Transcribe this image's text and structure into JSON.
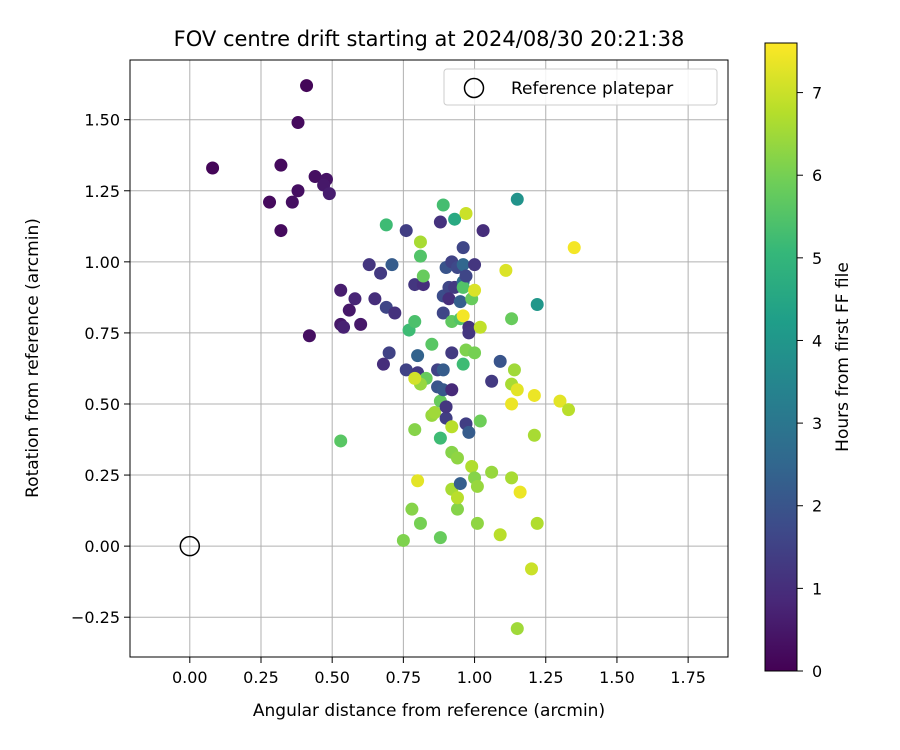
{
  "chart_data": {
    "type": "scatter",
    "title": "FOV centre drift starting at 2024/08/30 20:21:38",
    "xlabel": "Angular distance from reference (arcmin)",
    "ylabel": "Rotation from reference (arcmin)",
    "xlim": [
      -0.21,
      1.89
    ],
    "ylim": [
      -0.39,
      1.71
    ],
    "xticks": [
      "0.00",
      "0.25",
      "0.50",
      "0.75",
      "1.00",
      "1.25",
      "1.50",
      "1.75"
    ],
    "yticks": [
      "−0.25",
      "0.00",
      "0.25",
      "0.50",
      "0.75",
      "1.00",
      "1.25",
      "1.50"
    ],
    "grid": true,
    "legend": {
      "position": "top-right",
      "entries": [
        "Reference platepar"
      ]
    },
    "reference_point": {
      "x": 0.0,
      "y": 0.0
    },
    "colorbar": {
      "label": "Hours from first FF file",
      "min": 0,
      "max": 7.6,
      "ticks": [
        "0",
        "1",
        "2",
        "3",
        "4",
        "5",
        "6",
        "7"
      ],
      "colormap": "viridis"
    },
    "colormap_stops": [
      "#440154",
      "#482878",
      "#3e4989",
      "#31688e",
      "#26828e",
      "#1f9e89",
      "#35b779",
      "#6ece58",
      "#b5de2b",
      "#fde725"
    ],
    "points": [
      [
        0.41,
        1.62,
        0.1
      ],
      [
        0.38,
        1.49,
        0.2
      ],
      [
        0.08,
        1.33,
        0.1
      ],
      [
        0.32,
        1.34,
        0.2
      ],
      [
        0.44,
        1.3,
        0.3
      ],
      [
        0.48,
        1.29,
        0.4
      ],
      [
        0.38,
        1.25,
        0.3
      ],
      [
        0.47,
        1.27,
        0.5
      ],
      [
        0.49,
        1.24,
        0.6
      ],
      [
        0.28,
        1.21,
        0.2
      ],
      [
        0.36,
        1.21,
        0.3
      ],
      [
        0.32,
        1.11,
        0.2
      ],
      [
        0.42,
        0.74,
        0.3
      ],
      [
        0.53,
        0.9,
        0.6
      ],
      [
        0.53,
        0.78,
        0.5
      ],
      [
        0.54,
        0.77,
        0.7
      ],
      [
        0.56,
        0.83,
        0.5
      ],
      [
        0.58,
        0.87,
        0.8
      ],
      [
        0.6,
        0.78,
        0.5
      ],
      [
        0.63,
        0.99,
        1.2
      ],
      [
        0.65,
        0.87,
        1.0
      ],
      [
        0.67,
        0.96,
        1.3
      ],
      [
        0.68,
        0.64,
        1.0
      ],
      [
        0.69,
        0.84,
        1.6
      ],
      [
        0.7,
        0.68,
        1.5
      ],
      [
        0.69,
        1.13,
        5.2
      ],
      [
        0.71,
        0.99,
        2.2
      ],
      [
        0.72,
        0.82,
        1.1
      ],
      [
        0.76,
        1.11,
        1.4
      ],
      [
        0.76,
        0.62,
        1.5
      ],
      [
        0.77,
        0.76,
        5.2
      ],
      [
        0.79,
        0.79,
        5.4
      ],
      [
        0.79,
        0.92,
        1.2
      ],
      [
        0.8,
        0.61,
        1.3
      ],
      [
        0.8,
        0.67,
        2.4
      ],
      [
        0.82,
        0.92,
        1.0
      ],
      [
        0.81,
        1.02,
        5.5
      ],
      [
        0.81,
        1.07,
        6.6
      ],
      [
        0.82,
        0.95,
        5.8
      ],
      [
        0.83,
        0.59,
        5.8
      ],
      [
        0.81,
        0.57,
        6.4
      ],
      [
        0.79,
        0.59,
        7.1
      ],
      [
        0.79,
        0.41,
        6.2
      ],
      [
        0.8,
        0.23,
        7.3
      ],
      [
        0.78,
        0.13,
        6.2
      ],
      [
        0.81,
        0.08,
        6.0
      ],
      [
        0.75,
        0.02,
        6.1
      ],
      [
        0.85,
        0.71,
        5.6
      ],
      [
        0.85,
        0.46,
        6.4
      ],
      [
        0.86,
        0.47,
        6.5
      ],
      [
        0.87,
        0.62,
        1.5
      ],
      [
        0.87,
        0.56,
        2.0
      ],
      [
        0.88,
        0.51,
        5.8
      ],
      [
        0.88,
        1.14,
        1.1
      ],
      [
        0.89,
        0.55,
        2.1
      ],
      [
        0.89,
        1.2,
        5.3
      ],
      [
        0.89,
        0.88,
        1.8
      ],
      [
        0.89,
        0.82,
        1.6
      ],
      [
        0.89,
        0.62,
        2.2
      ],
      [
        0.88,
        0.38,
        5.2
      ],
      [
        0.88,
        0.03,
        5.8
      ],
      [
        0.9,
        0.45,
        1.4
      ],
      [
        0.9,
        0.49,
        1.2
      ],
      [
        0.9,
        0.98,
        2.0
      ],
      [
        0.91,
        0.91,
        1.6
      ],
      [
        0.91,
        0.87,
        1.0
      ],
      [
        0.92,
        1.0,
        1.5
      ],
      [
        0.92,
        0.79,
        5.7
      ],
      [
        0.92,
        0.68,
        1.3
      ],
      [
        0.92,
        0.55,
        0.9
      ],
      [
        0.92,
        0.42,
        6.8
      ],
      [
        0.92,
        0.33,
        6.2
      ],
      [
        0.92,
        0.2,
        6.6
      ],
      [
        0.93,
        1.15,
        4.6
      ],
      [
        0.93,
        0.91,
        1.3
      ],
      [
        0.94,
        0.13,
        6.2
      ],
      [
        0.94,
        0.31,
        6.3
      ],
      [
        0.94,
        0.17,
        6.8
      ],
      [
        0.94,
        0.98,
        1.7
      ],
      [
        0.95,
        0.86,
        2.3
      ],
      [
        0.95,
        0.8,
        5.5
      ],
      [
        0.95,
        0.22,
        2.3
      ],
      [
        0.96,
        0.99,
        2.5
      ],
      [
        0.96,
        0.93,
        2.7
      ],
      [
        0.96,
        1.05,
        1.6
      ],
      [
        0.96,
        0.91,
        5.5
      ],
      [
        0.96,
        0.81,
        7.5
      ],
      [
        0.96,
        0.64,
        5.2
      ],
      [
        0.97,
        1.17,
        7.0
      ],
      [
        0.97,
        0.95,
        1.6
      ],
      [
        0.97,
        0.69,
        6.1
      ],
      [
        0.97,
        0.43,
        1.4
      ],
      [
        0.98,
        0.77,
        1.1
      ],
      [
        0.98,
        0.75,
        1.2
      ],
      [
        0.98,
        0.4,
        2.2
      ],
      [
        0.99,
        0.87,
        5.8
      ],
      [
        0.99,
        0.28,
        6.7
      ],
      [
        1.0,
        0.9,
        7.2
      ],
      [
        1.0,
        0.99,
        1.2
      ],
      [
        1.0,
        0.68,
        6.0
      ],
      [
        1.0,
        0.24,
        6.2
      ],
      [
        1.01,
        0.08,
        6.3
      ],
      [
        1.01,
        0.21,
        6.4
      ],
      [
        1.02,
        0.77,
        6.9
      ],
      [
        1.02,
        0.44,
        5.9
      ],
      [
        1.03,
        1.11,
        1.0
      ],
      [
        1.06,
        0.58,
        1.3
      ],
      [
        1.06,
        0.26,
        6.4
      ],
      [
        1.09,
        0.65,
        2.0
      ],
      [
        1.09,
        0.04,
        6.8
      ],
      [
        1.11,
        0.97,
        7.2
      ],
      [
        1.13,
        0.8,
        5.8
      ],
      [
        1.13,
        0.57,
        6.6
      ],
      [
        1.13,
        0.5,
        7.4
      ],
      [
        1.13,
        0.24,
        6.6
      ],
      [
        1.14,
        0.62,
        6.5
      ],
      [
        1.15,
        1.22,
        3.9
      ],
      [
        1.15,
        0.55,
        7.3
      ],
      [
        1.15,
        -0.29,
        6.5
      ],
      [
        1.16,
        0.19,
        7.4
      ],
      [
        1.2,
        -0.08,
        7.0
      ],
      [
        1.21,
        0.39,
        6.6
      ],
      [
        1.21,
        0.53,
        7.4
      ],
      [
        1.22,
        0.85,
        4.0
      ],
      [
        1.22,
        0.08,
        6.7
      ],
      [
        1.3,
        0.51,
        7.3
      ],
      [
        1.33,
        0.48,
        6.8
      ],
      [
        1.35,
        1.05,
        7.5
      ],
      [
        0.53,
        0.37,
        5.6
      ]
    ]
  }
}
